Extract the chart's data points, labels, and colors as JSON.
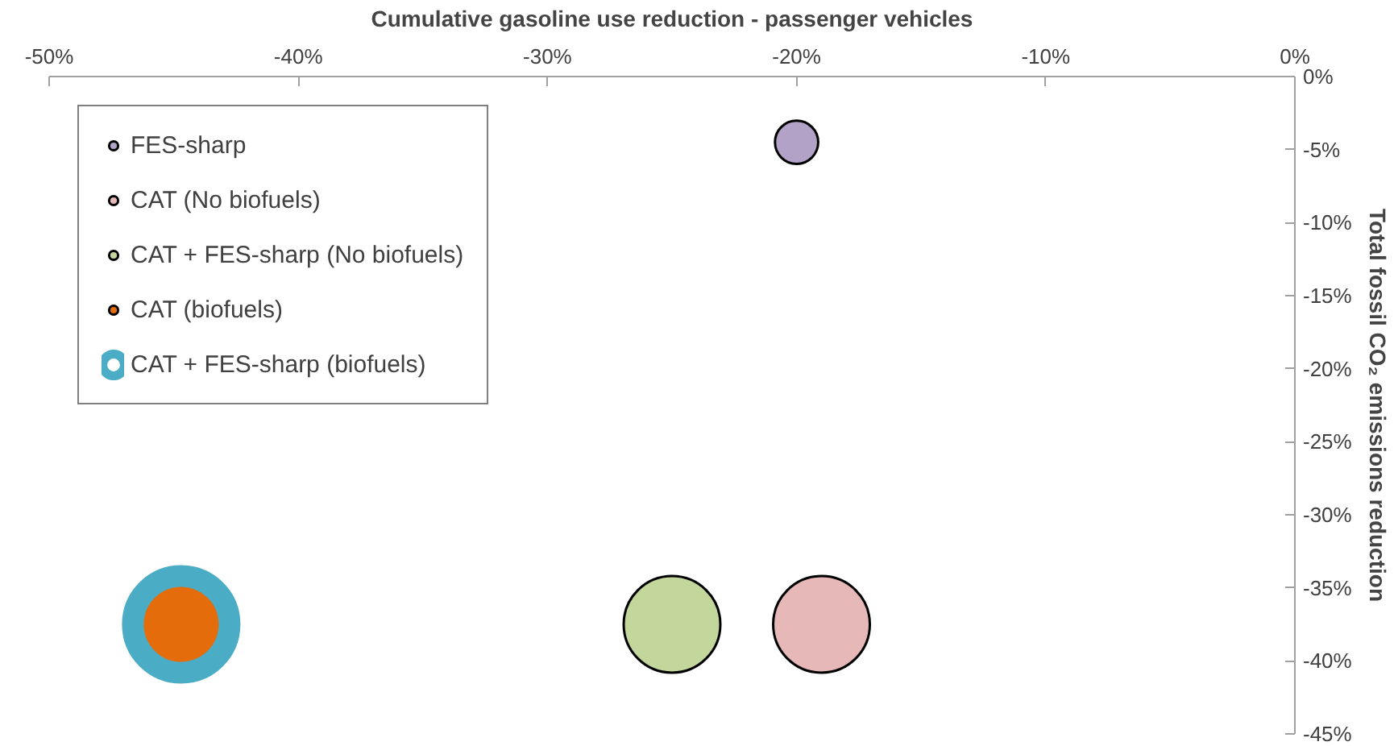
{
  "chart_data": {
    "type": "bubble",
    "xlabel": "Cumulative gasoline use reduction - passenger vehicles",
    "ylabel": "Total fossil CO₂ emissions reduction",
    "xlim": [
      -50,
      0
    ],
    "ylim": [
      -45,
      0
    ],
    "xticks": [
      {
        "value": -50,
        "label": "-50%"
      },
      {
        "value": -40,
        "label": "-40%"
      },
      {
        "value": -30,
        "label": "-30%"
      },
      {
        "value": -20,
        "label": "-20%"
      },
      {
        "value": -10,
        "label": "-10%"
      },
      {
        "value": 0,
        "label": "0%"
      }
    ],
    "yticks": [
      {
        "value": 0,
        "label": "0%"
      },
      {
        "value": -5,
        "label": "-5%"
      },
      {
        "value": -10,
        "label": "-10%"
      },
      {
        "value": -15,
        "label": "-15%"
      },
      {
        "value": -20,
        "label": "-20%"
      },
      {
        "value": -25,
        "label": "-25%"
      },
      {
        "value": -30,
        "label": "-30%"
      },
      {
        "value": -35,
        "label": "-35%"
      },
      {
        "value": -40,
        "label": "-40%"
      },
      {
        "value": -45,
        "label": "-45%"
      }
    ],
    "grid": false,
    "legend": "top left",
    "series": [
      {
        "name": "FES-sharp",
        "color": "#b3a2c7",
        "x": [
          -20
        ],
        "values": [
          -4.5
        ],
        "sizes": [
          0.2
        ]
      },
      {
        "name": "CAT (No biofuels)",
        "color": "#e6b9b8",
        "x": [
          -19
        ],
        "values": [
          -37.5
        ],
        "sizes": [
          1
        ]
      },
      {
        "name": "CAT + FES-sharp (No biofuels)",
        "color": "#c3d69b",
        "x": [
          -25
        ],
        "values": [
          -37.5
        ],
        "sizes": [
          1
        ]
      },
      {
        "name": "CAT (biofuels)",
        "color": "#e46c0a",
        "x": [
          -44.7
        ],
        "values": [
          -37.5
        ],
        "sizes": [
          1
        ]
      },
      {
        "name": "CAT + FES-sharp (biofuels)",
        "color": "#4bacc6",
        "x": [
          -44.7
        ],
        "values": [
          -37.5
        ],
        "sizes": [
          1
        ]
      }
    ]
  }
}
